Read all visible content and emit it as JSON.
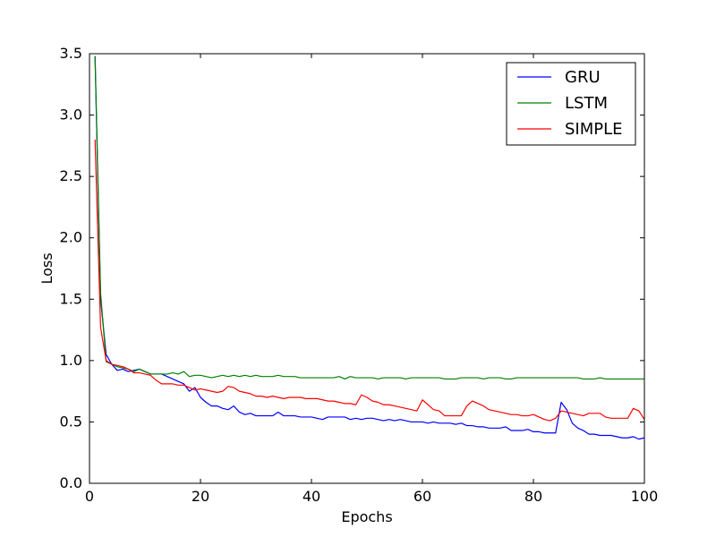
{
  "chart_data": {
    "type": "line",
    "title": "",
    "xlabel": "Epochs",
    "ylabel": "Loss",
    "xlim": [
      0,
      100
    ],
    "ylim": [
      0.0,
      3.5
    ],
    "xticks": [
      "0",
      "20",
      "40",
      "60",
      "80",
      "100"
    ],
    "yticks": [
      "0.0",
      "0.5",
      "1.0",
      "1.5",
      "2.0",
      "2.5",
      "3.0",
      "3.5"
    ],
    "grid": false,
    "legend": {
      "placement": "top-right"
    },
    "x": [
      1,
      2,
      3,
      4,
      5,
      6,
      7,
      8,
      9,
      10,
      11,
      12,
      13,
      14,
      15,
      16,
      17,
      18,
      19,
      20,
      21,
      22,
      23,
      24,
      25,
      26,
      27,
      28,
      29,
      30,
      31,
      32,
      33,
      34,
      35,
      36,
      37,
      38,
      39,
      40,
      41,
      42,
      43,
      44,
      45,
      46,
      47,
      48,
      49,
      50,
      51,
      52,
      53,
      54,
      55,
      56,
      57,
      58,
      59,
      60,
      61,
      62,
      63,
      64,
      65,
      66,
      67,
      68,
      69,
      70,
      71,
      72,
      73,
      74,
      75,
      76,
      77,
      78,
      79,
      80,
      81,
      82,
      83,
      84,
      85,
      86,
      87,
      88,
      89,
      90,
      91,
      92,
      93,
      94,
      95,
      96,
      97,
      98,
      99,
      100
    ],
    "series": [
      {
        "name": "GRU",
        "color": "#0000ff",
        "values": [
          3.48,
          1.5,
          1.05,
          0.97,
          0.92,
          0.93,
          0.91,
          0.92,
          0.93,
          0.91,
          0.89,
          0.89,
          0.89,
          0.87,
          0.85,
          0.83,
          0.81,
          0.75,
          0.78,
          0.7,
          0.66,
          0.63,
          0.63,
          0.61,
          0.6,
          0.63,
          0.58,
          0.56,
          0.57,
          0.55,
          0.55,
          0.55,
          0.55,
          0.58,
          0.55,
          0.55,
          0.55,
          0.54,
          0.54,
          0.54,
          0.53,
          0.52,
          0.54,
          0.54,
          0.54,
          0.54,
          0.52,
          0.53,
          0.52,
          0.53,
          0.53,
          0.52,
          0.51,
          0.52,
          0.51,
          0.52,
          0.51,
          0.5,
          0.5,
          0.5,
          0.49,
          0.5,
          0.49,
          0.49,
          0.49,
          0.48,
          0.49,
          0.47,
          0.47,
          0.46,
          0.46,
          0.45,
          0.45,
          0.45,
          0.46,
          0.43,
          0.43,
          0.43,
          0.44,
          0.42,
          0.42,
          0.41,
          0.41,
          0.41,
          0.66,
          0.6,
          0.49,
          0.45,
          0.43,
          0.4,
          0.4,
          0.39,
          0.39,
          0.39,
          0.38,
          0.37,
          0.37,
          0.38,
          0.36,
          0.37
        ]
      },
      {
        "name": "LSTM",
        "color": "#008000",
        "values": [
          3.48,
          1.55,
          0.99,
          0.97,
          0.95,
          0.94,
          0.93,
          0.91,
          0.93,
          0.91,
          0.89,
          0.89,
          0.89,
          0.89,
          0.9,
          0.89,
          0.91,
          0.87,
          0.88,
          0.88,
          0.87,
          0.86,
          0.87,
          0.88,
          0.87,
          0.88,
          0.87,
          0.88,
          0.87,
          0.88,
          0.87,
          0.87,
          0.87,
          0.88,
          0.87,
          0.87,
          0.87,
          0.86,
          0.86,
          0.86,
          0.86,
          0.86,
          0.86,
          0.86,
          0.87,
          0.85,
          0.87,
          0.86,
          0.86,
          0.86,
          0.86,
          0.85,
          0.86,
          0.86,
          0.86,
          0.86,
          0.85,
          0.86,
          0.86,
          0.86,
          0.86,
          0.86,
          0.86,
          0.85,
          0.85,
          0.85,
          0.86,
          0.86,
          0.86,
          0.86,
          0.85,
          0.86,
          0.86,
          0.86,
          0.85,
          0.85,
          0.86,
          0.86,
          0.86,
          0.86,
          0.86,
          0.86,
          0.86,
          0.86,
          0.86,
          0.86,
          0.86,
          0.86,
          0.85,
          0.85,
          0.85,
          0.86,
          0.85,
          0.85,
          0.85,
          0.85,
          0.85,
          0.85,
          0.85,
          0.85
        ]
      },
      {
        "name": "SIMPLE",
        "color": "#ff0000",
        "values": [
          2.8,
          1.27,
          1.0,
          0.97,
          0.96,
          0.95,
          0.93,
          0.9,
          0.9,
          0.89,
          0.88,
          0.84,
          0.81,
          0.81,
          0.81,
          0.8,
          0.8,
          0.78,
          0.76,
          0.77,
          0.76,
          0.75,
          0.74,
          0.75,
          0.79,
          0.78,
          0.75,
          0.74,
          0.73,
          0.71,
          0.71,
          0.7,
          0.71,
          0.7,
          0.69,
          0.7,
          0.7,
          0.7,
          0.69,
          0.69,
          0.69,
          0.68,
          0.67,
          0.67,
          0.66,
          0.65,
          0.65,
          0.64,
          0.72,
          0.7,
          0.67,
          0.66,
          0.64,
          0.64,
          0.63,
          0.62,
          0.61,
          0.6,
          0.59,
          0.68,
          0.64,
          0.6,
          0.59,
          0.55,
          0.55,
          0.55,
          0.55,
          0.63,
          0.67,
          0.65,
          0.63,
          0.6,
          0.59,
          0.58,
          0.57,
          0.56,
          0.56,
          0.55,
          0.55,
          0.56,
          0.54,
          0.52,
          0.51,
          0.53,
          0.59,
          0.58,
          0.57,
          0.56,
          0.55,
          0.57,
          0.57,
          0.57,
          0.54,
          0.53,
          0.53,
          0.53,
          0.53,
          0.61,
          0.59,
          0.52
        ]
      }
    ]
  }
}
